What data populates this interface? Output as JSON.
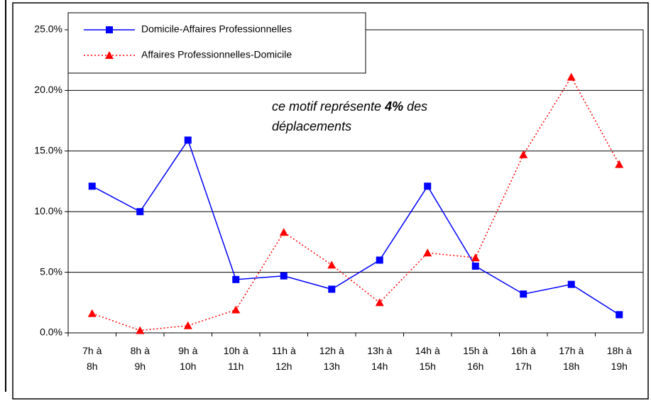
{
  "chart_data": {
    "type": "line",
    "annotation": [
      "ce motif représente ",
      "4%",
      " des déplacements"
    ],
    "categories": [
      "7h à 8h",
      "8h à 9h",
      "9h à 10h",
      "10h à 11h",
      "11h à 12h",
      "12h à 13h",
      "13h à 14h",
      "14h à 15h",
      "15h à 16h",
      "16h à 17h",
      "17h à 18h",
      "18h à 19h"
    ],
    "series": [
      {
        "name": "Domicile-Affaires Professionnelles",
        "color": "#0000ff",
        "line_style": "solid",
        "marker": "square",
        "values": [
          12.1,
          10.0,
          15.9,
          4.4,
          4.7,
          3.6,
          6.0,
          12.1,
          5.5,
          3.2,
          4.0,
          1.5
        ]
      },
      {
        "name": "Affaires Professionnelles-Domicile",
        "color": "#ff0000",
        "line_style": "dotted",
        "marker": "triangle",
        "values": [
          1.6,
          0.2,
          0.6,
          1.9,
          8.3,
          5.6,
          2.5,
          6.6,
          6.2,
          14.7,
          21.1,
          13.9
        ]
      }
    ],
    "ylim": [
      0,
      25
    ],
    "yticks": [
      {
        "value": 0,
        "label": "0.0%"
      },
      {
        "value": 5,
        "label": "5.0%"
      },
      {
        "value": 10,
        "label": "10.0%"
      },
      {
        "value": 15,
        "label": "15.0%"
      },
      {
        "value": 20,
        "label": "20.0%"
      },
      {
        "value": 25,
        "label": "25.0%"
      }
    ],
    "grid": true,
    "legend": "top-left"
  }
}
